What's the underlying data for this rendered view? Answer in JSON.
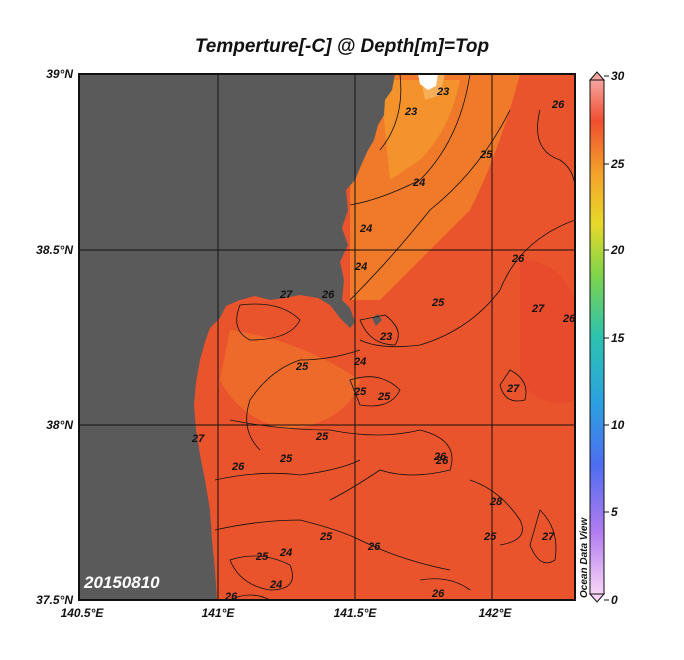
{
  "title": "Temperture[-C] @ Depth[m]=Top",
  "date_stamp": "20150810",
  "watermark": "Ocean Data View",
  "lat_labels": [
    "39°N",
    "38.5°N",
    "38°N",
    "37.5°N"
  ],
  "lon_labels": [
    "140.5°E",
    "141°E",
    "141.5°E",
    "142°E"
  ],
  "colorbar_ticks": [
    "30",
    "25",
    "20",
    "15",
    "10",
    "5",
    "0"
  ],
  "contour_labels": [
    "23",
    "23",
    "26",
    "25",
    "24",
    "24",
    "24",
    "26",
    "27",
    "25",
    "27",
    "26",
    "23",
    "25",
    "24",
    "25",
    "25",
    "27",
    "27",
    "25",
    "26",
    "25",
    "26",
    "25",
    "25",
    "26",
    "24",
    "25",
    "26",
    "24",
    "26",
    "26",
    "27",
    "26",
    "28"
  ],
  "colors": {
    "land": "#5a5a5a",
    "ocean_warm": "#e8532c",
    "ocean_cool": "#f1802a",
    "grid": "#111111"
  }
}
